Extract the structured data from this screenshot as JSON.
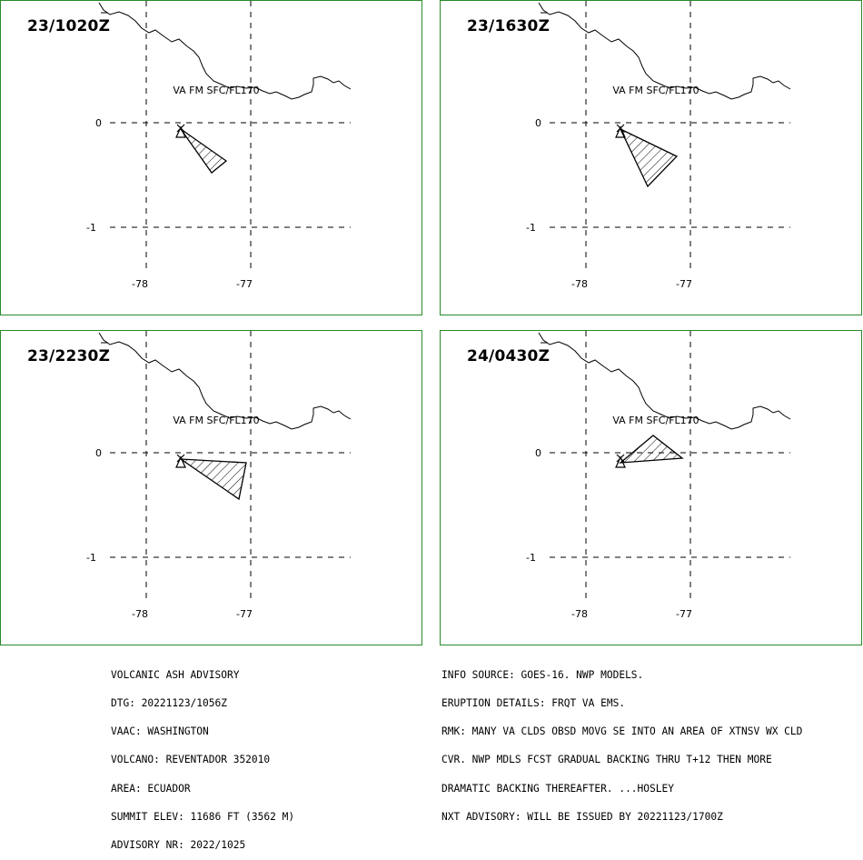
{
  "panels": [
    {
      "time": "23/1020Z",
      "label": "VA FM SFC/FL170"
    },
    {
      "time": "23/1630Z",
      "label": "VA FM SFC/FL170"
    },
    {
      "time": "23/2230Z",
      "label": "VA FM SFC/FL170"
    },
    {
      "time": "24/0430Z",
      "label": "VA FM SFC/FL170"
    }
  ],
  "axes": {
    "lat_labels": [
      "0",
      "-1"
    ],
    "lon_labels": [
      "-78",
      "-77"
    ]
  },
  "colors": {
    "panel_border": "#2a8a2a",
    "ink": "#000000"
  },
  "advisory_left": [
    "VOLCANIC ASH ADVISORY",
    "DTG: 20221123/1056Z",
    "VAAC: WASHINGTON",
    "VOLCANO: REVENTADOR 352010",
    "AREA: ECUADOR",
    "SUMMIT ELEV: 11686 FT (3562 M)",
    "ADVISORY NR: 2022/1025"
  ],
  "advisory_right": [
    "INFO SOURCE: GOES-16. NWP MODELS.",
    "ERUPTION DETAILS: FRQT VA EMS.",
    "RMK: MANY VA CLDS OBSD MOVG SE INTO AN AREA OF XTNSV WX CLD",
    "CVR. NWP MDLS FCST GRADUAL BACKING THRU T+12 THEN MORE",
    "DRAMATIC BACKING THEREAFTER. ...HOSLEY",
    "NXT ADVISORY: WILL BE ISSUED BY 20221123/1700Z"
  ]
}
